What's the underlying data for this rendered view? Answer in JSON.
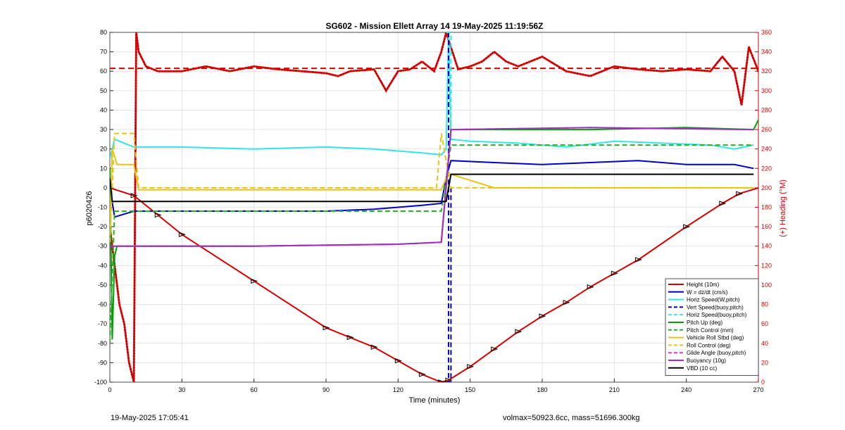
{
  "chart_data": {
    "type": "line",
    "title": "SG602 - Mission Ellett Array 14 19-May-2025 11:19:56Z",
    "xlabel": "Time (minutes)",
    "ylabel": "p6020426",
    "y2label": "(+) Heading (°M)",
    "xlim": [
      0,
      270
    ],
    "ylim": [
      -100,
      80
    ],
    "y2lim": [
      0,
      360
    ],
    "xticks": [
      0,
      30,
      60,
      90,
      120,
      150,
      180,
      210,
      240,
      270
    ],
    "yticks": [
      -100,
      -90,
      -80,
      -70,
      -60,
      -50,
      -40,
      -30,
      -20,
      -10,
      0,
      10,
      20,
      30,
      40,
      50,
      60,
      70,
      80
    ],
    "y2ticks": [
      0,
      20,
      40,
      60,
      80,
      100,
      120,
      140,
      160,
      180,
      200,
      220,
      240,
      260,
      280,
      300,
      320,
      340,
      360
    ],
    "grid": true,
    "legend_position": "bottom-right",
    "colors": {
      "red": "#d40000",
      "blue": "#0000c8",
      "cyan": "#33e6e6",
      "green": "#00a000",
      "green_dash": "#2bb02b",
      "yellow": "#e6c41a",
      "magenta": "#e633e6",
      "purple": "#a030c0",
      "black": "#000000"
    },
    "series": [
      {
        "name": "Height (10m)",
        "color": "#d40000",
        "style": "solid",
        "x": [
          0,
          10,
          20,
          30,
          60,
          90,
          100,
          110,
          120,
          130,
          138,
          141,
          150,
          160,
          170,
          180,
          190,
          200,
          210,
          220,
          240,
          255,
          262,
          270
        ],
        "y": [
          0,
          -4,
          -14,
          -24,
          -48,
          -72,
          -77,
          -82,
          -89,
          -96,
          -100,
          -99,
          -92,
          -83,
          -74,
          -66,
          -59,
          -51,
          -44,
          -37,
          -20,
          -8,
          -3,
          0
        ]
      },
      {
        "name": "W = dz/dt (cm/s)",
        "color": "#0000c8",
        "style": "solid",
        "x": [
          0,
          2,
          10,
          30,
          60,
          90,
          110,
          120,
          130,
          138,
          140,
          142,
          160,
          180,
          200,
          220,
          240,
          260,
          268
        ],
        "y": [
          0,
          -15,
          -12,
          -12,
          -12,
          -12,
          -11,
          -10,
          -9,
          -8,
          5,
          14,
          13,
          12,
          13,
          14,
          12,
          12,
          10
        ]
      },
      {
        "name": "Horiz Speed(W,pitch)",
        "color": "#33e6e6",
        "style": "solid",
        "x": [
          0,
          2,
          10,
          30,
          60,
          90,
          110,
          130,
          138,
          140,
          141,
          142,
          150,
          170,
          190,
          210,
          230,
          250,
          260,
          268
        ],
        "y": [
          15,
          25,
          21,
          21,
          20,
          21,
          20,
          18,
          17,
          20,
          80,
          25,
          24,
          23,
          21,
          24,
          23,
          22,
          20,
          22
        ]
      },
      {
        "name": "Vert Speed(buoy,pitch)",
        "color": "#0000c8",
        "style": "dashed",
        "x": [
          141,
          141,
          142,
          142
        ],
        "y": [
          80,
          -100,
          -100,
          0
        ]
      },
      {
        "name": "Horiz Speed(buoy,pitch)",
        "color": "#33e6e6",
        "style": "dashed",
        "x": [
          140,
          142,
          142
        ],
        "y": [
          80,
          80,
          30
        ]
      },
      {
        "name": "Pitch Up (deg)",
        "color": "#00a000",
        "style": "solid",
        "x": [
          0,
          1,
          2,
          3,
          10,
          60,
          120,
          138,
          140,
          142,
          150,
          200,
          240,
          268,
          270
        ],
        "y": [
          10,
          -78,
          -35,
          -30,
          -30,
          -30,
          -29,
          -28,
          0,
          30,
          30,
          30,
          31,
          30,
          35
        ]
      },
      {
        "name": "Pitch Control (mm)",
        "color": "#2bb02b",
        "style": "dashed",
        "x": [
          0,
          2,
          10,
          138,
          142,
          150,
          200,
          268
        ],
        "y": [
          -80,
          -12,
          -12,
          -12,
          22,
          22,
          22,
          22
        ]
      },
      {
        "name": "Vehicle Roll Stbd (deg)",
        "color": "#e6c41a",
        "style": "solid",
        "x": [
          0,
          1,
          3,
          5,
          10,
          12,
          14,
          50,
          100,
          138,
          140,
          142,
          160,
          200,
          240,
          268
        ],
        "y": [
          -25,
          20,
          12,
          12,
          12,
          -1,
          -1,
          -1,
          -1,
          -1,
          5,
          7,
          0,
          0,
          0,
          0
        ]
      },
      {
        "name": "Roll Control (deg)",
        "color": "#e6c41a",
        "style": "dashed",
        "x": [
          0,
          2,
          10,
          12,
          20,
          60,
          100,
          136,
          138,
          142,
          150,
          200,
          240,
          268
        ],
        "y": [
          -28,
          28,
          28,
          0,
          0,
          0,
          0,
          0,
          28,
          0,
          0,
          0,
          0,
          0
        ]
      },
      {
        "name": "Glide Angle (buoy,pitch)",
        "color": "#e633e6",
        "style": "dashed",
        "x": [
          0,
          3,
          60,
          120,
          138,
          142,
          200,
          268
        ],
        "y": [
          -30,
          -30,
          -30,
          -29,
          -28,
          30,
          31,
          30
        ]
      },
      {
        "name": "Buoyancy (10g)",
        "color": "#a030c0",
        "style": "solid",
        "x": [
          0,
          3,
          60,
          120,
          138,
          142,
          200,
          268
        ],
        "y": [
          -30,
          -30,
          -30,
          -29,
          -28,
          30,
          31,
          30
        ]
      },
      {
        "name": "VBD (10 cc)",
        "color": "#000000",
        "style": "solid",
        "x": [
          0,
          1,
          140,
          141,
          142,
          268
        ],
        "y": [
          5,
          -7,
          -7,
          0,
          7,
          7
        ]
      }
    ],
    "heading_series": {
      "axis": "right",
      "color": "#d40000",
      "style": "dotted",
      "reference": 323,
      "x": [
        0,
        2,
        4,
        6,
        8,
        10,
        11,
        12,
        15,
        20,
        30,
        40,
        50,
        60,
        70,
        80,
        90,
        95,
        100,
        110,
        115,
        120,
        125,
        130,
        135,
        138,
        140,
        145,
        150,
        155,
        160,
        165,
        170,
        180,
        190,
        200,
        210,
        220,
        230,
        240,
        250,
        255,
        260,
        263,
        266,
        270
      ],
      "y": [
        160,
        120,
        80,
        60,
        20,
        0,
        360,
        340,
        325,
        320,
        320,
        325,
        320,
        325,
        322,
        320,
        318,
        315,
        320,
        322,
        300,
        320,
        322,
        330,
        320,
        340,
        360,
        322,
        325,
        330,
        340,
        330,
        325,
        335,
        320,
        315,
        325,
        322,
        320,
        322,
        320,
        335,
        320,
        285,
        345,
        320
      ]
    },
    "markers": {
      "symbol": "triangle",
      "series": "Height (10m)"
    }
  },
  "footer": {
    "left": "19-May-2025 17:05:41",
    "right": "volmax=50923.6cc, mass=51696.300kg"
  }
}
